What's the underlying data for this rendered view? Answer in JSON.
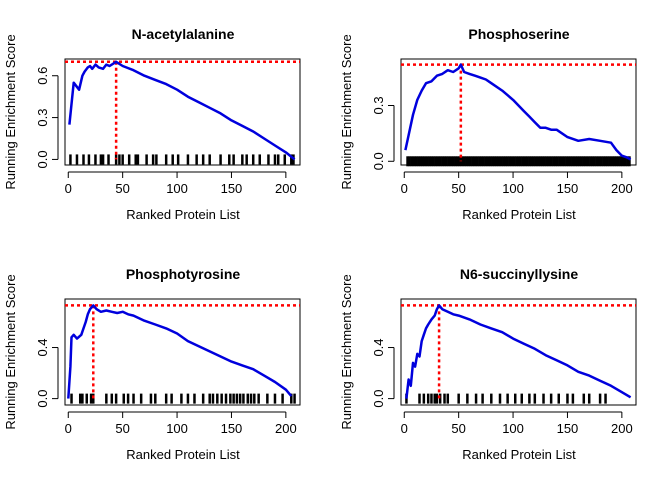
{
  "chart_data": [
    {
      "type": "line",
      "title": "N-acetylalanine",
      "xlabel": "Ranked Protein List",
      "ylabel": "Running Enrichment Score",
      "xlim": [
        -3,
        213
      ],
      "ylim": [
        -0.04,
        0.72
      ],
      "xticks": [
        "0",
        "50",
        "100",
        "150",
        "200"
      ],
      "yticks": [
        "0.0",
        "0.3",
        "0.6"
      ],
      "max_score": 0.7,
      "max_position": 44,
      "series": [
        {
          "x": [
            1,
            5,
            10,
            13,
            15,
            18,
            20,
            22,
            25,
            28,
            32,
            35,
            38,
            42,
            44,
            50,
            60,
            70,
            80,
            90,
            100,
            110,
            120,
            130,
            140,
            150,
            160,
            170,
            180,
            190,
            200,
            208
          ],
          "y": [
            0.25,
            0.55,
            0.5,
            0.6,
            0.63,
            0.66,
            0.67,
            0.65,
            0.68,
            0.66,
            0.65,
            0.68,
            0.67,
            0.69,
            0.7,
            0.67,
            0.64,
            0.6,
            0.57,
            0.54,
            0.5,
            0.45,
            0.41,
            0.37,
            0.33,
            0.28,
            0.24,
            0.2,
            0.15,
            0.1,
            0.05,
            0.0
          ]
        }
      ],
      "hits": [
        2,
        8,
        14,
        19,
        25,
        30,
        32,
        37,
        44,
        47,
        50,
        56,
        62,
        64,
        72,
        78,
        81,
        90,
        96,
        101,
        110,
        118,
        124,
        130,
        140,
        148,
        152,
        160,
        164,
        170,
        176,
        184,
        190,
        193,
        199,
        205,
        207
      ]
    },
    {
      "type": "line",
      "title": "Phosphoserine",
      "xlabel": "Ranked Protein List",
      "ylabel": "Running Enrichment Score",
      "xlim": [
        -3,
        213
      ],
      "ylim": [
        -0.02,
        0.55
      ],
      "xticks": [
        "0",
        "50",
        "100",
        "150",
        "200"
      ],
      "yticks": [
        "0.0",
        "0.3"
      ],
      "max_score": 0.52,
      "max_position": 52,
      "series": [
        {
          "x": [
            1,
            4,
            8,
            12,
            16,
            20,
            25,
            30,
            35,
            40,
            45,
            50,
            52,
            55,
            60,
            65,
            70,
            75,
            80,
            90,
            100,
            105,
            110,
            115,
            120,
            125,
            130,
            135,
            140,
            150,
            160,
            170,
            180,
            190,
            195,
            200,
            205,
            208
          ],
          "y": [
            0.06,
            0.14,
            0.25,
            0.33,
            0.38,
            0.42,
            0.43,
            0.46,
            0.47,
            0.49,
            0.48,
            0.5,
            0.52,
            0.48,
            0.47,
            0.46,
            0.45,
            0.44,
            0.42,
            0.38,
            0.33,
            0.3,
            0.27,
            0.24,
            0.21,
            0.18,
            0.18,
            0.17,
            0.17,
            0.13,
            0.11,
            0.12,
            0.11,
            0.1,
            0.06,
            0.03,
            0.02,
            0.01
          ]
        }
      ],
      "hits_from": 3,
      "hits_to": 208,
      "hits_step": 2
    },
    {
      "type": "line",
      "title": "Phosphotyrosine",
      "xlabel": "Ranked Protein List",
      "ylabel": "Running Enrichment Score",
      "xlim": [
        -3,
        213
      ],
      "ylim": [
        -0.05,
        0.78
      ],
      "xticks": [
        "0",
        "50",
        "100",
        "150",
        "200"
      ],
      "yticks": [
        "0.0",
        "0.4"
      ],
      "max_score": 0.73,
      "max_position": 23,
      "series": [
        {
          "x": [
            0,
            2,
            3,
            5,
            8,
            12,
            14,
            16,
            18,
            20,
            23,
            26,
            30,
            35,
            40,
            45,
            50,
            55,
            60,
            70,
            80,
            90,
            100,
            110,
            120,
            130,
            140,
            150,
            160,
            170,
            180,
            190,
            200,
            205
          ],
          "y": [
            0.0,
            0.25,
            0.48,
            0.5,
            0.47,
            0.5,
            0.55,
            0.6,
            0.66,
            0.7,
            0.73,
            0.7,
            0.68,
            0.69,
            0.68,
            0.67,
            0.68,
            0.66,
            0.65,
            0.61,
            0.58,
            0.55,
            0.51,
            0.45,
            0.41,
            0.37,
            0.33,
            0.29,
            0.26,
            0.23,
            0.18,
            0.13,
            0.07,
            0.02
          ]
        }
      ],
      "hits": [
        3,
        11,
        13,
        17,
        21,
        23,
        35,
        40,
        44,
        51,
        55,
        60,
        67,
        76,
        80,
        90,
        95,
        104,
        110,
        116,
        124,
        130,
        133,
        137,
        141,
        145,
        149,
        152,
        155,
        158,
        161,
        165,
        168,
        171,
        175,
        183,
        190,
        197,
        205,
        208
      ]
    },
    {
      "type": "line",
      "title": "N6-succinyllysine",
      "xlabel": "Ranked Protein List",
      "ylabel": "Running Enrichment Score",
      "xlim": [
        -3,
        213
      ],
      "ylim": [
        -0.05,
        0.78
      ],
      "xticks": [
        "0",
        "50",
        "100",
        "150",
        "200"
      ],
      "yticks": [
        "0.0",
        "0.4"
      ],
      "max_score": 0.73,
      "max_position": 32,
      "series": [
        {
          "x": [
            2,
            4,
            6,
            8,
            10,
            12,
            14,
            16,
            18,
            20,
            22,
            25,
            28,
            30,
            32,
            35,
            40,
            45,
            50,
            60,
            70,
            80,
            90,
            100,
            110,
            120,
            130,
            140,
            150,
            160,
            170,
            180,
            190,
            200,
            208
          ],
          "y": [
            0.0,
            0.15,
            0.1,
            0.28,
            0.25,
            0.35,
            0.33,
            0.45,
            0.5,
            0.55,
            0.58,
            0.62,
            0.65,
            0.7,
            0.73,
            0.7,
            0.68,
            0.66,
            0.65,
            0.62,
            0.58,
            0.55,
            0.52,
            0.47,
            0.43,
            0.39,
            0.34,
            0.3,
            0.26,
            0.21,
            0.18,
            0.14,
            0.1,
            0.05,
            0.01
          ]
        }
      ],
      "hits": [
        2,
        14,
        18,
        22,
        25,
        28,
        30,
        33,
        37,
        40,
        50,
        58,
        66,
        72,
        80,
        88,
        95,
        102,
        108,
        115,
        120,
        128,
        135,
        142,
        150,
        155,
        165,
        170,
        180,
        185
      ]
    }
  ]
}
